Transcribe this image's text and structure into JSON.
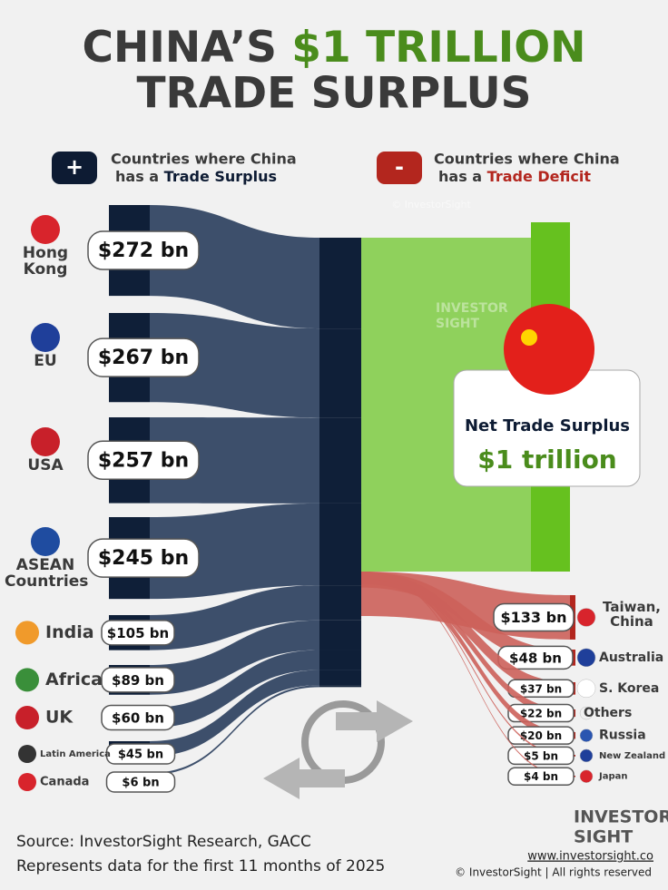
{
  "chart_data": {
    "type": "sankey",
    "title": [
      "CHINA’S",
      "$1 TRILLION",
      "TRADE SURPLUS"
    ],
    "legend": [
      {
        "symbol": "+",
        "line1": "Countries where China",
        "line2": "has a",
        "highlight": "Trade Surplus",
        "color": "#0d1b33"
      },
      {
        "symbol": "-",
        "line1": "Countries where China",
        "line2": "has a",
        "highlight": "Trade Deficit",
        "color": "#b3261e"
      }
    ],
    "surplus": {
      "names": [
        "Hong Kong",
        "EU",
        "USA",
        "ASEAN Countries",
        "India",
        "Africa",
        "UK",
        "Latin America",
        "Canada"
      ],
      "values": [
        272,
        267,
        257,
        245,
        105,
        89,
        60,
        45,
        6
      ],
      "value_labels": [
        "$272 bn",
        "$267 bn",
        "$257 bn",
        "$245 bn",
        "$105 bn",
        "$89 bn",
        "$60 bn",
        "$45 bn",
        "$6 bn"
      ],
      "color": "#3d4f6b",
      "node_color": "#0f1f38"
    },
    "net": {
      "label": "Net Trade Surplus",
      "value": 1000,
      "value_label": "$1 trillion",
      "color": "#8fd15c",
      "node_color": "#66c11f"
    },
    "deficit": {
      "names": [
        "Taiwan, China",
        "Australia",
        "S. Korea",
        "Others",
        "Russia",
        "New Zealand",
        "Japan"
      ],
      "values": [
        133,
        48,
        37,
        22,
        20,
        5,
        4
      ],
      "value_labels": [
        "$133 bn",
        "$48 bn",
        "$37 bn",
        "$22 bn",
        "$20 bn",
        "$5 bn",
        "$4 bn"
      ],
      "color": "#cc605a",
      "node_color": "#b3261e"
    },
    "watermark": "© InvestorSight",
    "brand": [
      "INVESTOR",
      "SIGHT"
    ],
    "source": "Source: InvestorSight Research, GACC",
    "note": "Represents data for the first 11 months of 2025",
    "website": "www.investorsight.co",
    "copyright": "© InvestorSight |  All rights reserved"
  }
}
